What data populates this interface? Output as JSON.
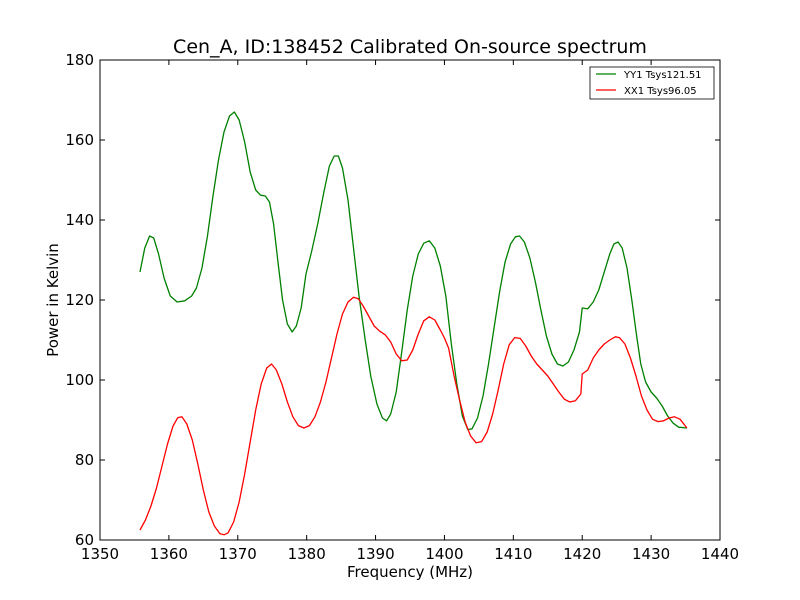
{
  "chart_data": {
    "type": "line",
    "title": "Cen_A, ID:138452 Calibrated On-source spectrum",
    "xlabel": "Frequency (MHz)",
    "ylabel": "Power in Kelvin",
    "xlim": [
      1350,
      1440
    ],
    "ylim": [
      60,
      180
    ],
    "xticks": [
      1350,
      1360,
      1370,
      1380,
      1390,
      1400,
      1410,
      1420,
      1430,
      1440
    ],
    "yticks": [
      60,
      80,
      100,
      120,
      140,
      160,
      180
    ],
    "grid": false,
    "legend_position": "top-right",
    "series": [
      {
        "name": "YY1 Tsys121.51",
        "color": "#008000",
        "points": [
          [
            1355.8,
            127
          ],
          [
            1356.5,
            133
          ],
          [
            1357.2,
            136
          ],
          [
            1357.8,
            135.5
          ],
          [
            1358.5,
            131.5
          ],
          [
            1359.3,
            125.5
          ],
          [
            1360.2,
            121
          ],
          [
            1361.2,
            119.5
          ],
          [
            1362.3,
            119.8
          ],
          [
            1363.3,
            121
          ],
          [
            1364.0,
            123
          ],
          [
            1364.8,
            128
          ],
          [
            1365.6,
            136
          ],
          [
            1366.4,
            146
          ],
          [
            1367.2,
            155
          ],
          [
            1368.0,
            162
          ],
          [
            1368.8,
            166
          ],
          [
            1369.5,
            167
          ],
          [
            1370.2,
            165
          ],
          [
            1371.0,
            159.5
          ],
          [
            1371.8,
            152
          ],
          [
            1372.6,
            147.5
          ],
          [
            1373.3,
            146.2
          ],
          [
            1374.0,
            146
          ],
          [
            1374.6,
            144.5
          ],
          [
            1375.2,
            139
          ],
          [
            1375.8,
            130
          ],
          [
            1376.5,
            120
          ],
          [
            1377.2,
            114
          ],
          [
            1377.9,
            112
          ],
          [
            1378.5,
            113.5
          ],
          [
            1379.2,
            118
          ],
          [
            1379.9,
            126.5
          ],
          [
            1380.7,
            132
          ],
          [
            1381.6,
            139
          ],
          [
            1382.5,
            147
          ],
          [
            1383.3,
            153.5
          ],
          [
            1384.0,
            156
          ],
          [
            1384.6,
            156
          ],
          [
            1385.2,
            153
          ],
          [
            1386.0,
            145
          ],
          [
            1386.8,
            133
          ],
          [
            1387.6,
            121
          ],
          [
            1388.5,
            110
          ],
          [
            1389.3,
            101
          ],
          [
            1390.2,
            94
          ],
          [
            1391.0,
            90.5
          ],
          [
            1391.6,
            89.8
          ],
          [
            1392.2,
            91.5
          ],
          [
            1393.0,
            97
          ],
          [
            1393.8,
            107
          ],
          [
            1394.6,
            117.5
          ],
          [
            1395.4,
            126
          ],
          [
            1396.2,
            131.5
          ],
          [
            1397.0,
            134.2
          ],
          [
            1397.8,
            134.8
          ],
          [
            1398.6,
            133
          ],
          [
            1399.4,
            128.5
          ],
          [
            1400.2,
            121
          ],
          [
            1401.0,
            109
          ],
          [
            1401.8,
            99
          ],
          [
            1402.6,
            91
          ],
          [
            1403.4,
            87.6
          ],
          [
            1404.0,
            87.8
          ],
          [
            1404.8,
            90.5
          ],
          [
            1405.6,
            96
          ],
          [
            1406.4,
            104
          ],
          [
            1407.2,
            113
          ],
          [
            1408.0,
            122
          ],
          [
            1408.8,
            129.5
          ],
          [
            1409.6,
            134
          ],
          [
            1410.3,
            135.8
          ],
          [
            1410.9,
            136
          ],
          [
            1411.6,
            134.5
          ],
          [
            1412.4,
            130.5
          ],
          [
            1413.2,
            124.5
          ],
          [
            1414.0,
            117.5
          ],
          [
            1414.8,
            111
          ],
          [
            1415.6,
            106.5
          ],
          [
            1416.4,
            104
          ],
          [
            1417.2,
            103.5
          ],
          [
            1418.0,
            104.5
          ],
          [
            1418.8,
            107.5
          ],
          [
            1419.6,
            112
          ],
          [
            1420.0,
            118
          ],
          [
            1420.8,
            117.8
          ],
          [
            1421.6,
            119.5
          ],
          [
            1422.4,
            122.5
          ],
          [
            1423.2,
            127
          ],
          [
            1424.0,
            131.5
          ],
          [
            1424.6,
            134
          ],
          [
            1425.2,
            134.5
          ],
          [
            1425.8,
            133
          ],
          [
            1426.5,
            128
          ],
          [
            1427.2,
            120
          ],
          [
            1427.9,
            111
          ],
          [
            1428.5,
            104
          ],
          [
            1429.2,
            99.5
          ],
          [
            1430.0,
            97
          ],
          [
            1430.8,
            95.5
          ],
          [
            1431.6,
            93.5
          ],
          [
            1432.4,
            91
          ],
          [
            1433.2,
            89.2
          ],
          [
            1434.0,
            88.2
          ],
          [
            1435.2,
            88
          ]
        ]
      },
      {
        "name": "XX1 Tsys96.05",
        "color": "#ff0000",
        "points": [
          [
            1355.8,
            62.5
          ],
          [
            1356.6,
            65
          ],
          [
            1357.4,
            68.5
          ],
          [
            1358.2,
            73
          ],
          [
            1359.0,
            78.5
          ],
          [
            1359.8,
            84
          ],
          [
            1360.6,
            88.5
          ],
          [
            1361.3,
            90.6
          ],
          [
            1361.9,
            90.8
          ],
          [
            1362.6,
            89
          ],
          [
            1363.4,
            85
          ],
          [
            1364.2,
            79
          ],
          [
            1365.0,
            72.5
          ],
          [
            1365.8,
            67
          ],
          [
            1366.6,
            63.5
          ],
          [
            1367.4,
            61.6
          ],
          [
            1368.0,
            61.3
          ],
          [
            1368.6,
            61.8
          ],
          [
            1369.4,
            64.5
          ],
          [
            1370.2,
            69.5
          ],
          [
            1371.0,
            76.5
          ],
          [
            1371.8,
            84.5
          ],
          [
            1372.6,
            92.5
          ],
          [
            1373.4,
            99
          ],
          [
            1374.2,
            103
          ],
          [
            1374.9,
            104
          ],
          [
            1375.6,
            102.5
          ],
          [
            1376.4,
            99
          ],
          [
            1377.2,
            94.5
          ],
          [
            1378.0,
            90.8
          ],
          [
            1378.8,
            88.6
          ],
          [
            1379.6,
            88
          ],
          [
            1380.4,
            88.6
          ],
          [
            1381.2,
            90.8
          ],
          [
            1382.0,
            94.5
          ],
          [
            1382.8,
            99.5
          ],
          [
            1383.6,
            105.5
          ],
          [
            1384.4,
            111.5
          ],
          [
            1385.2,
            116.5
          ],
          [
            1386.0,
            119.5
          ],
          [
            1386.8,
            120.7
          ],
          [
            1387.5,
            120.3
          ],
          [
            1388.2,
            118.5
          ],
          [
            1389.0,
            116
          ],
          [
            1389.8,
            113.5
          ],
          [
            1390.6,
            112.2
          ],
          [
            1391.4,
            111.3
          ],
          [
            1392.2,
            109.5
          ],
          [
            1393.0,
            106.5
          ],
          [
            1393.8,
            104.8
          ],
          [
            1394.6,
            105
          ],
          [
            1395.4,
            107.5
          ],
          [
            1396.2,
            111.5
          ],
          [
            1397.0,
            114.8
          ],
          [
            1397.8,
            115.8
          ],
          [
            1398.6,
            115
          ],
          [
            1399.4,
            112.5
          ],
          [
            1400.0,
            110.5
          ],
          [
            1400.6,
            108
          ],
          [
            1401.4,
            101
          ],
          [
            1402.2,
            95
          ],
          [
            1403.0,
            89.5
          ],
          [
            1403.8,
            86
          ],
          [
            1404.6,
            84.3
          ],
          [
            1405.4,
            84.6
          ],
          [
            1406.2,
            87
          ],
          [
            1407.0,
            91.5
          ],
          [
            1407.8,
            97.5
          ],
          [
            1408.6,
            104
          ],
          [
            1409.4,
            108.8
          ],
          [
            1410.2,
            110.6
          ],
          [
            1411.0,
            110.4
          ],
          [
            1411.8,
            108.5
          ],
          [
            1412.6,
            106
          ],
          [
            1413.4,
            104
          ],
          [
            1414.2,
            102.5
          ],
          [
            1415.0,
            101
          ],
          [
            1415.8,
            99
          ],
          [
            1416.6,
            97
          ],
          [
            1417.4,
            95.2
          ],
          [
            1418.2,
            94.5
          ],
          [
            1419.0,
            94.8
          ],
          [
            1419.8,
            96.5
          ],
          [
            1420.0,
            101.5
          ],
          [
            1420.8,
            102.5
          ],
          [
            1421.6,
            105.5
          ],
          [
            1422.4,
            107.5
          ],
          [
            1423.2,
            109
          ],
          [
            1424.0,
            110
          ],
          [
            1424.8,
            110.8
          ],
          [
            1425.4,
            110.6
          ],
          [
            1426.2,
            109
          ],
          [
            1427.0,
            105.5
          ],
          [
            1427.8,
            101
          ],
          [
            1428.6,
            96
          ],
          [
            1429.4,
            92.5
          ],
          [
            1430.2,
            90.2
          ],
          [
            1431.0,
            89.6
          ],
          [
            1431.8,
            89.8
          ],
          [
            1432.6,
            90.5
          ],
          [
            1433.4,
            90.8
          ],
          [
            1434.2,
            90.2
          ],
          [
            1435.2,
            88
          ]
        ]
      }
    ]
  }
}
